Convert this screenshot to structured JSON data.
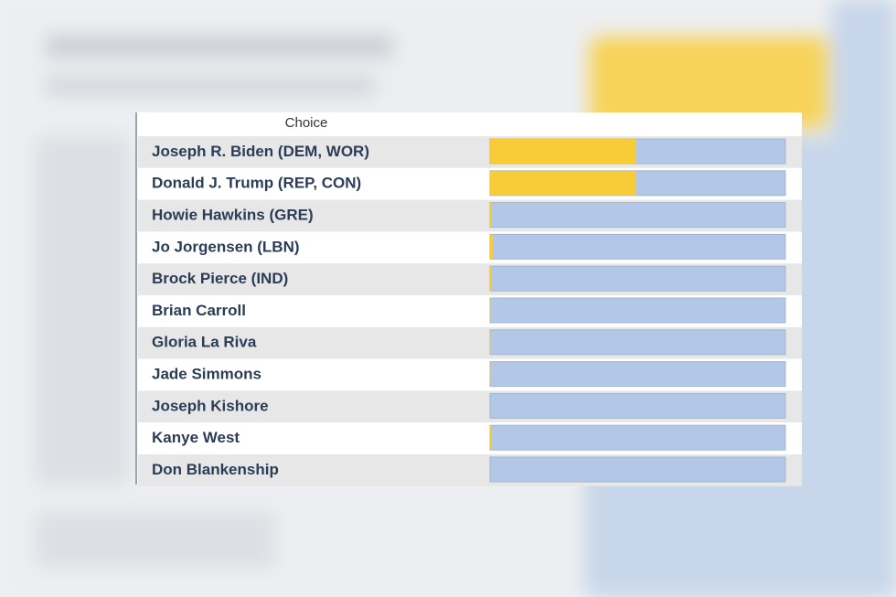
{
  "chart_data": {
    "type": "bar",
    "orientation": "horizontal",
    "column_header": "Choice",
    "categories": [
      "Joseph R. Biden (DEM, WOR)",
      "Donald J. Trump (REP, CON)",
      "Howie Hawkins (GRE)",
      "Jo Jorgensen (LBN)",
      "Brock Pierce (IND)",
      "Brian Carroll",
      "Gloria La Riva",
      "Jade Simmons",
      "Joseph Kishore",
      "Kanye West",
      "Don Blankenship"
    ],
    "values": [
      49.3,
      49.2,
      0.6,
      0.9,
      0.5,
      0.1,
      0.1,
      0.1,
      0,
      0.3,
      0
    ],
    "xlim": [
      0,
      100
    ],
    "color": "#f8cb38",
    "track_color": "#b2c8e6"
  }
}
